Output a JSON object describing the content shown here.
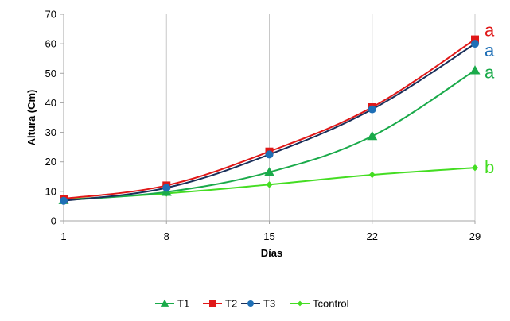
{
  "chart_data": {
    "type": "line",
    "title": "",
    "xlabel": "Días",
    "ylabel": "Altura (Cm)",
    "x": [
      1,
      8,
      15,
      22,
      29
    ],
    "x_ticks": [
      "1",
      "8",
      "15",
      "22",
      "29"
    ],
    "ylim": [
      0,
      70
    ],
    "y_ticks": [
      "0",
      "10",
      "20",
      "30",
      "40",
      "50",
      "60",
      "70"
    ],
    "grid": "vertical",
    "legend_position": "bottom",
    "series": [
      {
        "name": "T1",
        "color": "#1aaa4a",
        "marker": "triangle",
        "values": [
          7.0,
          9.8,
          16.5,
          28.7,
          51.0
        ]
      },
      {
        "name": "T2",
        "color": "#e01818",
        "marker": "square",
        "values": [
          7.5,
          12.0,
          23.5,
          38.5,
          61.5
        ]
      },
      {
        "name": "T3",
        "color": "#1e6fb6",
        "marker": "circle",
        "values": [
          6.8,
          11.2,
          22.5,
          37.8,
          60.0
        ]
      },
      {
        "name": "Tcontrol",
        "color": "#44dd22",
        "marker": "diamond",
        "values": [
          7.2,
          9.3,
          12.3,
          15.6,
          18.0
        ]
      }
    ],
    "annotations": [
      {
        "text": "a",
        "color": "#e01818",
        "series": "T2"
      },
      {
        "text": "a",
        "color": "#1e6fb6",
        "series": "T3"
      },
      {
        "text": "a",
        "color": "#1aaa4a",
        "series": "T1"
      },
      {
        "text": "b",
        "color": "#44dd22",
        "series": "Tcontrol"
      }
    ],
    "line_color_T3": "#1a2f5a"
  }
}
